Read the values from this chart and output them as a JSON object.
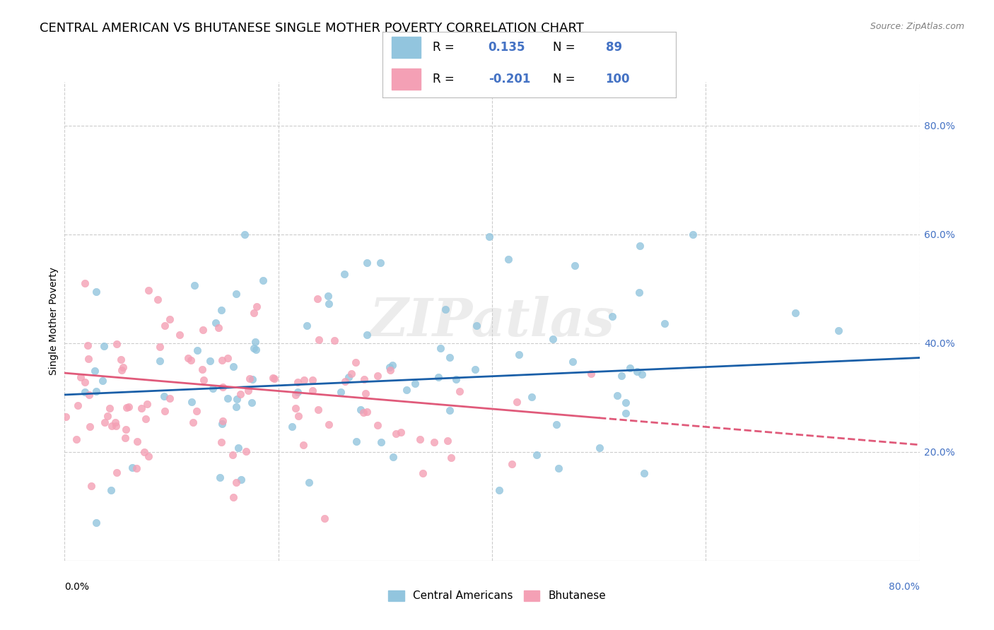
{
  "title": "CENTRAL AMERICAN VS BHUTANESE SINGLE MOTHER POVERTY CORRELATION CHART",
  "source": "Source: ZipAtlas.com",
  "ylabel": "Single Mother Poverty",
  "ytick_values": [
    0.2,
    0.4,
    0.6,
    0.8
  ],
  "xlim": [
    0.0,
    0.8
  ],
  "ylim": [
    0.0,
    0.88
  ],
  "blue_color": "#92c5de",
  "pink_color": "#f4a0b5",
  "blue_line_color": "#1a5fa8",
  "pink_line_color": "#e05a7a",
  "watermark": "ZIPatlas",
  "legend_label1": "Central Americans",
  "legend_label2": "Bhutanese",
  "background_color": "#ffffff",
  "grid_color": "#cccccc",
  "right_axis_color": "#4472c4",
  "title_fontsize": 13,
  "axis_label_fontsize": 10,
  "tick_fontsize": 10,
  "blue_R": 0.135,
  "blue_N": 89,
  "pink_R": -0.201,
  "pink_N": 100,
  "blue_slope": 0.085,
  "blue_intercept": 0.305,
  "pink_slope": -0.165,
  "pink_intercept": 0.345
}
